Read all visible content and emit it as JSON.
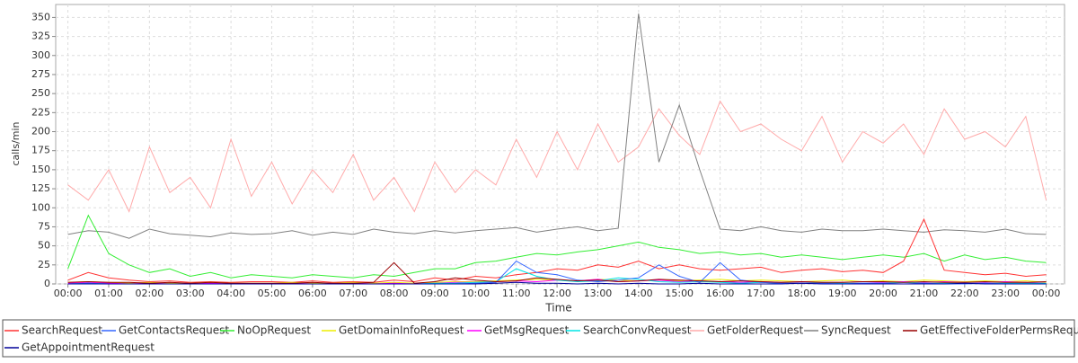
{
  "chart_data": {
    "type": "line",
    "x_label": "Time",
    "y_label": "calls/min",
    "xlim": [
      -0.3,
      24.45
    ],
    "ylim": [
      0,
      367
    ],
    "grid": true,
    "yticks": [
      0,
      25,
      50,
      75,
      100,
      125,
      150,
      175,
      200,
      225,
      250,
      275,
      300,
      325,
      350
    ],
    "xticks": [
      {
        "value": 0,
        "label": "00:00"
      },
      {
        "value": 1,
        "label": "01:00"
      },
      {
        "value": 2,
        "label": "02:00"
      },
      {
        "value": 3,
        "label": "03:00"
      },
      {
        "value": 4,
        "label": "04:00"
      },
      {
        "value": 5,
        "label": "05:00"
      },
      {
        "value": 6,
        "label": "06:00"
      },
      {
        "value": 7,
        "label": "07:00"
      },
      {
        "value": 8,
        "label": "08:00"
      },
      {
        "value": 9,
        "label": "09:00"
      },
      {
        "value": 10,
        "label": "10:00"
      },
      {
        "value": 11,
        "label": "11:00"
      },
      {
        "value": 12,
        "label": "12:00"
      },
      {
        "value": 13,
        "label": "13:00"
      },
      {
        "value": 14,
        "label": "14:00"
      },
      {
        "value": 15,
        "label": "15:00"
      },
      {
        "value": 16,
        "label": "16:00"
      },
      {
        "value": 17,
        "label": "17:00"
      },
      {
        "value": 18,
        "label": "18:00"
      },
      {
        "value": 19,
        "label": "19:00"
      },
      {
        "value": 20,
        "label": "20:00"
      },
      {
        "value": 21,
        "label": "21:00"
      },
      {
        "value": 22,
        "label": "22:00"
      },
      {
        "value": 23,
        "label": "23:00"
      },
      {
        "value": 24,
        "label": "00:00"
      }
    ],
    "x": [
      0,
      0.5,
      1,
      1.5,
      2,
      2.5,
      3,
      3.5,
      4,
      4.5,
      5,
      5.5,
      6,
      6.5,
      7,
      7.5,
      8,
      8.5,
      9,
      9.5,
      10,
      10.5,
      11,
      11.5,
      12,
      12.5,
      13,
      13.5,
      14,
      14.5,
      15,
      15.5,
      16,
      16.5,
      17,
      17.5,
      18,
      18.5,
      19,
      19.5,
      20,
      20.5,
      21,
      21.5,
      22,
      22.5,
      23,
      23.5,
      24
    ],
    "series": [
      {
        "name": "SearchRequest",
        "color": "#ff3333",
        "values": [
          5,
          15,
          8,
          5,
          3,
          4,
          2,
          3,
          2,
          3,
          3,
          2,
          4,
          2,
          3,
          2,
          5,
          3,
          8,
          5,
          10,
          8,
          12,
          15,
          20,
          18,
          25,
          22,
          30,
          20,
          25,
          20,
          18,
          20,
          22,
          15,
          18,
          20,
          16,
          18,
          15,
          30,
          85,
          18,
          15,
          12,
          14,
          10,
          12
        ]
      },
      {
        "name": "GetContactsRequest",
        "color": "#3366ff",
        "values": [
          0,
          1,
          0,
          0,
          0,
          0,
          0,
          0,
          0,
          0,
          0,
          0,
          0,
          0,
          0,
          0,
          0,
          0,
          0,
          0,
          1,
          2,
          30,
          15,
          12,
          5,
          3,
          5,
          8,
          25,
          10,
          2,
          28,
          5,
          2,
          1,
          1,
          1,
          0,
          1,
          1,
          0,
          1,
          0,
          0,
          1,
          0,
          0,
          0
        ]
      },
      {
        "name": "NoOpRequest",
        "color": "#33ee33",
        "values": [
          20,
          90,
          40,
          25,
          15,
          20,
          10,
          15,
          8,
          12,
          10,
          8,
          12,
          10,
          8,
          12,
          10,
          15,
          20,
          20,
          28,
          30,
          35,
          40,
          38,
          42,
          45,
          50,
          55,
          48,
          45,
          40,
          42,
          38,
          40,
          35,
          38,
          35,
          32,
          35,
          38,
          35,
          40,
          30,
          38,
          32,
          35,
          30,
          28
        ]
      },
      {
        "name": "GetDomainInfoRequest",
        "color": "#eeee00",
        "values": [
          2,
          3,
          2,
          1,
          2,
          1,
          1,
          2,
          1,
          1,
          1,
          2,
          1,
          1,
          2,
          1,
          2,
          1,
          2,
          3,
          3,
          4,
          5,
          6,
          5,
          4,
          6,
          5,
          4,
          5,
          4,
          5,
          6,
          4,
          5,
          4,
          3,
          4,
          5,
          3,
          4,
          3,
          5,
          4,
          3,
          4,
          3,
          4,
          2
        ]
      },
      {
        "name": "GetMsgRequest",
        "color": "#ff00ff",
        "values": [
          1,
          2,
          1,
          0,
          1,
          0,
          0,
          1,
          0,
          0,
          0,
          1,
          0,
          0,
          1,
          0,
          1,
          0,
          1,
          2,
          2,
          3,
          4,
          3,
          5,
          4,
          6,
          3,
          4,
          5,
          3,
          4,
          3,
          2,
          3,
          2,
          3,
          2,
          2,
          3,
          2,
          3,
          2,
          3,
          2,
          2,
          3,
          2,
          1
        ]
      },
      {
        "name": "SearchConvRequest",
        "color": "#00e5e5",
        "values": [
          0,
          1,
          0,
          0,
          0,
          0,
          0,
          0,
          0,
          0,
          0,
          0,
          0,
          0,
          0,
          0,
          0,
          0,
          1,
          1,
          2,
          3,
          20,
          10,
          5,
          3,
          4,
          8,
          6,
          3,
          2,
          3,
          2,
          1,
          2,
          1,
          1,
          2,
          1,
          1,
          1,
          2,
          1,
          1,
          1,
          1,
          1,
          1,
          1
        ]
      },
      {
        "name": "GetFolderRequest",
        "color": "#ffaaaa",
        "values": [
          130,
          110,
          150,
          95,
          180,
          120,
          140,
          100,
          190,
          115,
          160,
          105,
          150,
          120,
          170,
          110,
          140,
          95,
          160,
          120,
          150,
          130,
          190,
          140,
          200,
          150,
          210,
          160,
          180,
          230,
          195,
          170,
          240,
          200,
          210,
          190,
          175,
          220,
          160,
          200,
          185,
          210,
          170,
          230,
          190,
          200,
          180,
          220,
          110
        ]
      },
      {
        "name": "SyncRequest",
        "color": "#808080",
        "values": [
          65,
          70,
          68,
          60,
          72,
          66,
          64,
          62,
          67,
          65,
          66,
          70,
          64,
          68,
          65,
          72,
          68,
          66,
          70,
          67,
          70,
          72,
          74,
          68,
          72,
          75,
          70,
          73,
          355,
          160,
          235,
          150,
          72,
          70,
          75,
          70,
          68,
          72,
          70,
          70,
          72,
          70,
          68,
          71,
          70,
          68,
          72,
          66,
          65
        ]
      },
      {
        "name": "GetEffectiveFolderPermsRequest",
        "color": "#990000",
        "values": [
          2,
          3,
          2,
          2,
          1,
          2,
          1,
          2,
          1,
          1,
          1,
          1,
          2,
          1,
          1,
          2,
          28,
          1,
          3,
          8,
          5,
          3,
          4,
          8,
          6,
          4,
          5,
          3,
          4,
          6,
          5,
          4,
          3,
          4,
          3,
          2,
          3,
          2,
          2,
          3,
          3,
          2,
          3,
          2,
          2,
          3,
          2,
          2,
          3
        ]
      },
      {
        "name": "GetAppointmentRequest",
        "color": "#000099",
        "values": [
          0,
          0,
          0,
          0,
          0,
          0,
          0,
          0,
          0,
          0,
          0,
          0,
          0,
          0,
          0,
          0,
          0,
          0,
          0,
          0,
          0,
          1,
          2,
          1,
          1,
          0,
          1,
          0,
          1,
          0,
          0,
          1,
          0,
          0,
          0,
          0,
          1,
          0,
          0,
          0,
          0,
          0,
          0,
          0,
          1,
          0,
          0,
          0,
          0
        ]
      }
    ]
  }
}
